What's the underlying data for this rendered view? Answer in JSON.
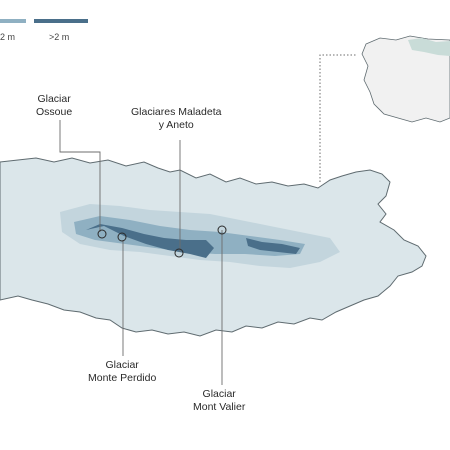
{
  "legend": {
    "items": [
      {
        "label": "2 m",
        "color": "#8fb0c2"
      },
      {
        "label": ">2 m",
        "color": "#4a6f8a"
      }
    ]
  },
  "colors": {
    "region_fill": "#dbe6ea",
    "region_outline": "#5f6b70",
    "inset_land": "#f1f1f1",
    "inset_highlight": "#c9dcd8",
    "shade_light": "#c3d5dd",
    "shade_mid": "#8fb0c2",
    "shade_dark": "#4a6f8a",
    "leader_line": "#6c6c6c"
  },
  "labels": {
    "ossoue": [
      "Glaciar",
      "Ossoue"
    ],
    "maladeta": [
      "Glaciares Maladeta",
      "y Aneto"
    ],
    "perdido": [
      "Glaciar",
      "Monte Perdido"
    ],
    "valier": [
      "Glaciar",
      "Mont Valier"
    ]
  }
}
